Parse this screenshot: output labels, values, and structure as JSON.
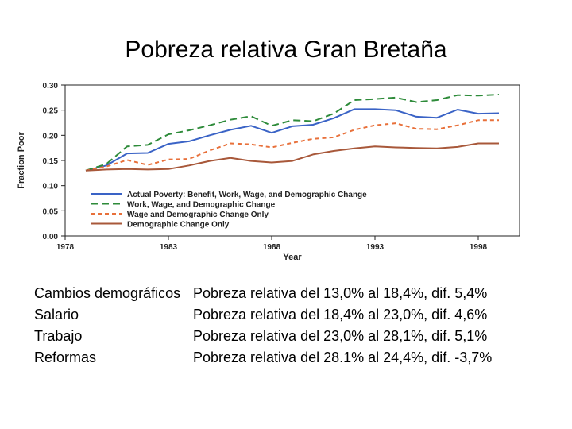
{
  "title": "Pobreza relativa Gran Bretaña",
  "chart_data": {
    "type": "line",
    "xlabel": "Year",
    "ylabel": "Fraction Poor",
    "xlim": [
      1978,
      2000
    ],
    "ylim": [
      0.0,
      0.3
    ],
    "x_ticks": [
      "1978",
      "1983",
      "1988",
      "1993",
      "1998"
    ],
    "y_ticks": [
      "0.00",
      "0.05",
      "0.10",
      "0.15",
      "0.20",
      "0.25",
      "0.30"
    ],
    "x": [
      1979,
      1980,
      1981,
      1982,
      1983,
      1984,
      1985,
      1986,
      1987,
      1988,
      1989,
      1990,
      1991,
      1992,
      1993,
      1994,
      1995,
      1996,
      1997,
      1998,
      1999
    ],
    "series": [
      {
        "name": "Actual Poverty: Benefit, Work, Wage, and Demographic Change",
        "color": "#3a63c6",
        "dash": "solid",
        "values": [
          0.13,
          0.14,
          0.164,
          0.165,
          0.183,
          0.188,
          0.2,
          0.211,
          0.219,
          0.205,
          0.218,
          0.221,
          0.234,
          0.252,
          0.252,
          0.25,
          0.237,
          0.235,
          0.251,
          0.243,
          0.244
        ]
      },
      {
        "name": "Work, Wage, and Demographic Change",
        "color": "#2e8b3a",
        "dash": "long",
        "values": [
          0.13,
          0.143,
          0.178,
          0.181,
          0.202,
          0.21,
          0.22,
          0.231,
          0.238,
          0.219,
          0.23,
          0.228,
          0.243,
          0.27,
          0.272,
          0.275,
          0.266,
          0.27,
          0.28,
          0.279,
          0.281
        ]
      },
      {
        "name": "Wage and Demographic Change Only",
        "color": "#e8703a",
        "dash": "short",
        "values": [
          0.13,
          0.138,
          0.151,
          0.141,
          0.152,
          0.153,
          0.17,
          0.184,
          0.182,
          0.176,
          0.185,
          0.193,
          0.196,
          0.211,
          0.22,
          0.224,
          0.213,
          0.212,
          0.22,
          0.23,
          0.23
        ]
      },
      {
        "name": "Demographic Change Only",
        "color": "#a8583a",
        "dash": "solid",
        "values": [
          0.13,
          0.132,
          0.133,
          0.132,
          0.133,
          0.14,
          0.149,
          0.155,
          0.149,
          0.146,
          0.149,
          0.162,
          0.169,
          0.174,
          0.178,
          0.176,
          0.175,
          0.174,
          0.177,
          0.184,
          0.184
        ]
      }
    ]
  },
  "notes": [
    {
      "label": "Cambios demográficos",
      "text": "Pobreza relativa del 13,0% al 18,4%, dif. 5,4%"
    },
    {
      "label": "Salario",
      "text": "Pobreza relativa del 18,4% al 23,0%, dif. 4,6%"
    },
    {
      "label": "Trabajo",
      "text": "Pobreza relativa del 23,0% al 28,1%, dif. 5,1%"
    },
    {
      "label": "Reformas",
      "text": "Pobreza relativa del 28.1% al 24,4%, dif. -3,7%"
    }
  ]
}
